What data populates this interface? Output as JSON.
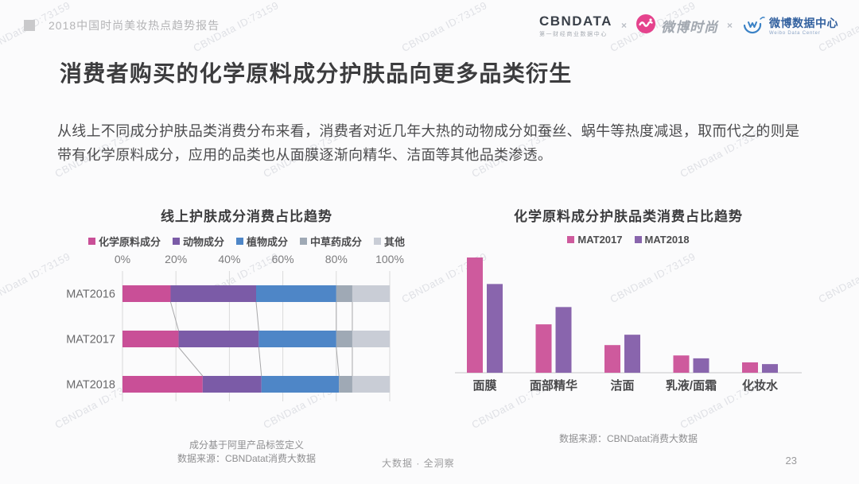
{
  "watermark": {
    "text": "CBNData ID:73159"
  },
  "header": {
    "report_tag": "2018中国时尚美妆热点趋势报告",
    "logos": {
      "cbndata": {
        "text": "CBNDATA",
        "subtitle": "第一财经商业数据中心"
      },
      "separator": "×",
      "weibo_fashion": {
        "text": "微博时尚"
      },
      "weibo_data_center": {
        "text": "微博数据中心",
        "subtitle": "Weibo Data Center"
      }
    }
  },
  "title": "消费者购买的化学原料成分护肤品向更多品类衍生",
  "paragraph": "从线上不同成分护肤品类消费分布来看，消费者对近几年大热的动物成分如蚕丝、蜗牛等热度减退，取而代之的则是带有化学原料成分，应用的品类也从面膜逐渐向精华、洁面等其他品类渗透。",
  "chart_data": [
    {
      "type": "bar",
      "orientation": "horizontal-stacked",
      "title": "线上护肤成分消费占比趋势",
      "categories": [
        "MAT2016",
        "MAT2017",
        "MAT2018"
      ],
      "series": [
        {
          "name": "化学原料成分",
          "color": "#C94F97",
          "values": [
            18,
            21,
            30
          ]
        },
        {
          "name": "动物成分",
          "color": "#7B5BA7",
          "values": [
            32,
            30,
            22
          ]
        },
        {
          "name": "植物成分",
          "color": "#4E86C7",
          "values": [
            30,
            29,
            29
          ]
        },
        {
          "name": "中草药成分",
          "color": "#9FA9B5",
          "values": [
            6,
            6,
            5
          ]
        },
        {
          "name": "其他",
          "color": "#C9CDD6",
          "values": [
            14,
            14,
            14
          ]
        }
      ],
      "x_axis": {
        "position": "top",
        "min": 0,
        "max": 100,
        "unit": "%",
        "ticks": [
          "0%",
          "20%",
          "40%",
          "60%",
          "80%",
          "100%"
        ]
      },
      "grid": true,
      "legend_position": "top",
      "connectors_between_bars": true,
      "footnotes": [
        "成分基于阿里产品标签定义",
        "数据来源：CBNDatat消费大数据"
      ]
    },
    {
      "type": "bar",
      "orientation": "vertical-grouped",
      "title": "化学原料成分护肤品类消费占比趋势",
      "categories": [
        "面膜",
        "面部精华",
        "洁面",
        "乳液/面霜",
        "化妆水"
      ],
      "series": [
        {
          "name": "MAT2017",
          "color": "#CE5A9D",
          "values": [
            100,
            42,
            24,
            15,
            9
          ]
        },
        {
          "name": "MAT2018",
          "color": "#8965AD",
          "values": [
            77,
            57,
            33,
            12.5,
            7.5
          ]
        }
      ],
      "value_scale": "relative bar height, no y-axis labels shown (面膜 MAT2017 = 100)",
      "grid": false,
      "legend_position": "top",
      "footnotes": [
        "数据来源：CBNDatat消费大数据"
      ]
    }
  ],
  "footer": {
    "slogan": "大数据 · 全洞察",
    "page_number": "23"
  }
}
